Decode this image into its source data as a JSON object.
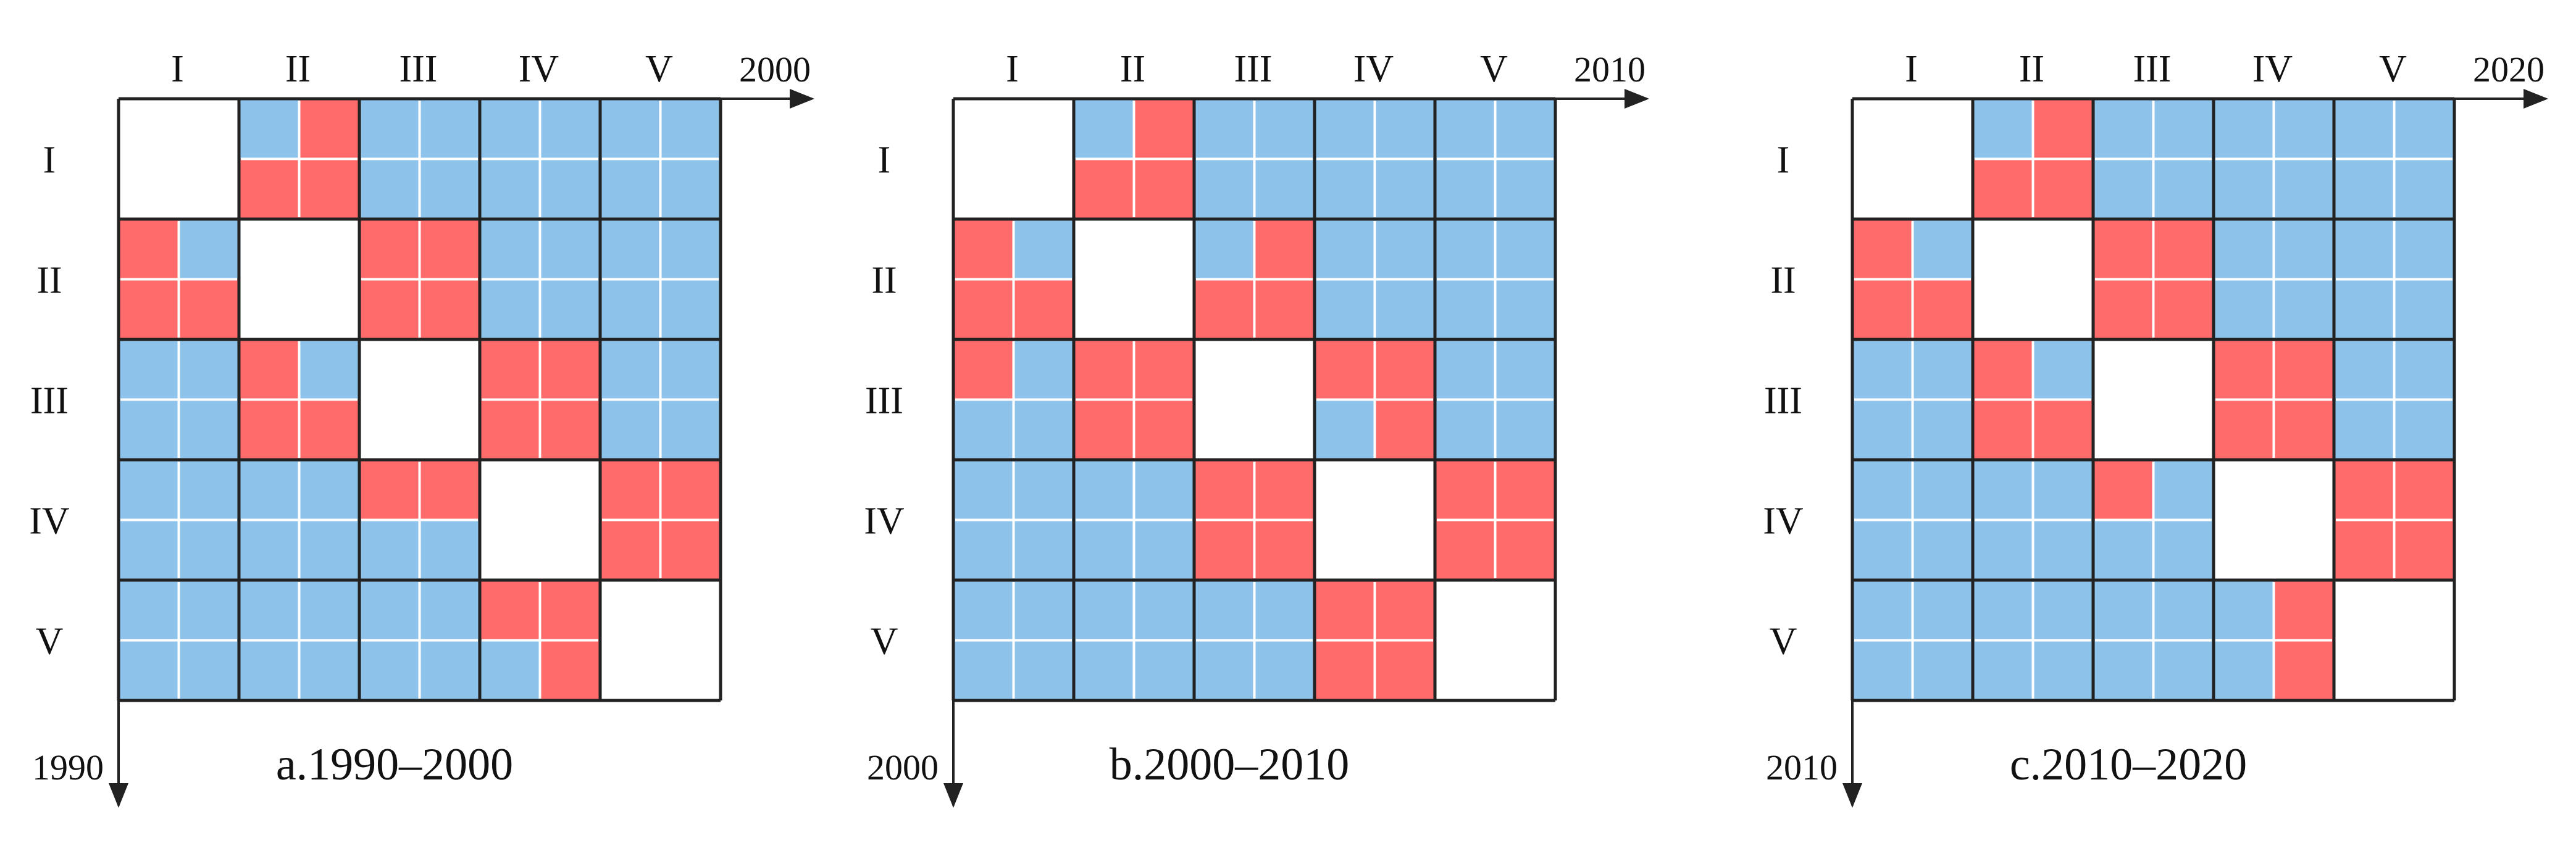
{
  "colors": {
    "blue": "#8DC3EA",
    "red": "#FF6A6A",
    "empty": "#FFFFFF",
    "grid_line": "#FFFFFF",
    "border": "#222222"
  },
  "chart_data": [
    {
      "type": "heatmap",
      "caption": "a.1990–2000",
      "row_year": "1990",
      "col_year": "2000",
      "row_labels": [
        "I",
        "II",
        "III",
        "IV",
        "V"
      ],
      "col_labels": [
        "I",
        "II",
        "III",
        "IV",
        "V"
      ],
      "cells": [
        [
          null,
          "BRRR",
          "BBBB",
          "BBBB",
          "BBBB"
        ],
        [
          "RBRR",
          null,
          "RRRR",
          "BBBB",
          "BBBB"
        ],
        [
          "BBBB",
          "RBRR",
          null,
          "RRRR",
          "BBBB"
        ],
        [
          "BBBB",
          "BBBB",
          "RRBB",
          null,
          "RRRR"
        ],
        [
          "BBBB",
          "BBBB",
          "BBBB",
          "RRBR",
          null
        ]
      ]
    },
    {
      "type": "heatmap",
      "caption": "b.2000–2010",
      "row_year": "2000",
      "col_year": "2010",
      "row_labels": [
        "I",
        "II",
        "III",
        "IV",
        "V"
      ],
      "col_labels": [
        "I",
        "II",
        "III",
        "IV",
        "V"
      ],
      "cells": [
        [
          null,
          "BRRR",
          "BBBB",
          "BBBB",
          "BBBB"
        ],
        [
          "RBRR",
          null,
          "BRRR",
          "BBBB",
          "BBBB"
        ],
        [
          "RBBB",
          "RRRR",
          null,
          "RRBR",
          "BBBB"
        ],
        [
          "BBBB",
          "BBBB",
          "RRRR",
          null,
          "RRRR"
        ],
        [
          "BBBB",
          "BBBB",
          "BBBB",
          "RRRR",
          null
        ]
      ]
    },
    {
      "type": "heatmap",
      "caption": "c.2010–2020",
      "row_year": "2010",
      "col_year": "2020",
      "row_labels": [
        "I",
        "II",
        "III",
        "IV",
        "V"
      ],
      "col_labels": [
        "I",
        "II",
        "III",
        "IV",
        "V"
      ],
      "cells": [
        [
          null,
          "BRRR",
          "BBBB",
          "BBBB",
          "BBBB"
        ],
        [
          "RBRR",
          null,
          "RRRR",
          "BBBB",
          "BBBB"
        ],
        [
          "BBBB",
          "RBRR",
          null,
          "RRRR",
          "BBBB"
        ],
        [
          "BBBB",
          "BBBB",
          "RBBB",
          null,
          "RRRR"
        ],
        [
          "BBBB",
          "BBBB",
          "BBBB",
          "BRBR",
          null
        ]
      ]
    }
  ]
}
